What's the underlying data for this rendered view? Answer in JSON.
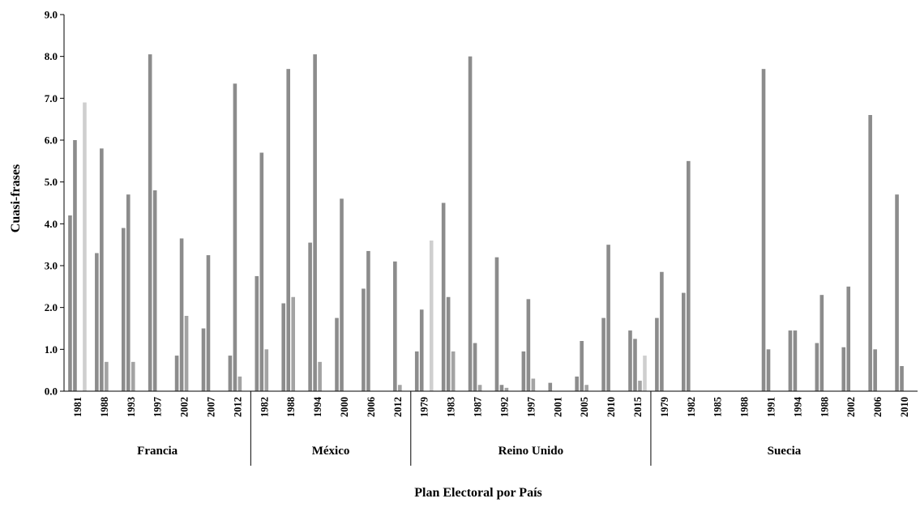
{
  "chart_data": {
    "type": "bar",
    "title": "",
    "xlabel": "Plan Electoral por País",
    "ylabel": "Cuasi-frases",
    "ylim": [
      0,
      9
    ],
    "yticks": [
      "0.0",
      "1.0",
      "2.0",
      "3.0",
      "4.0",
      "5.0",
      "6.0",
      "7.0",
      "8.0",
      "9.0"
    ],
    "grid": false,
    "legend": "none",
    "colors": [
      "#8c8c8c",
      "#8c8c8c",
      "#a3a3a3",
      "#cfcfcf"
    ],
    "groups": [
      {
        "name": "Francia",
        "categories": [
          "1981",
          "1988",
          "1993",
          "1997",
          "2002",
          "2007",
          "2012"
        ]
      },
      {
        "name": "México",
        "categories": [
          "1982",
          "1988",
          "1994",
          "2000",
          "2006",
          "2012"
        ]
      },
      {
        "name": "Reino Unido",
        "categories": [
          "1979",
          "1983",
          "1987",
          "1992",
          "1997",
          "2001",
          "2005",
          "2010",
          "2015"
        ]
      },
      {
        "name": "Suecia",
        "categories": [
          "1979",
          "1982",
          "1985",
          "1988",
          "1991",
          "1994",
          "1988",
          "2002",
          "2006",
          "2010"
        ]
      }
    ],
    "values": [
      [
        4.2,
        6.0,
        0,
        6.9
      ],
      [
        3.3,
        5.8,
        0.7,
        0
      ],
      [
        3.9,
        4.7,
        0.7,
        0
      ],
      [
        8.05,
        4.8,
        0,
        0
      ],
      [
        0.85,
        3.65,
        1.8,
        0
      ],
      [
        1.5,
        3.25,
        0,
        0
      ],
      [
        0.85,
        7.35,
        0.35,
        0
      ],
      [
        2.75,
        5.7,
        1.0,
        0
      ],
      [
        2.1,
        7.7,
        2.25,
        0
      ],
      [
        3.55,
        8.05,
        0.7,
        0
      ],
      [
        1.75,
        4.6,
        0,
        0
      ],
      [
        2.45,
        3.35,
        0,
        0
      ],
      [
        0,
        3.1,
        0.15,
        0
      ],
      [
        0.95,
        1.95,
        0,
        3.6
      ],
      [
        4.5,
        2.25,
        0.95,
        0
      ],
      [
        8.0,
        1.15,
        0.15,
        0
      ],
      [
        3.2,
        0.15,
        0.08,
        0
      ],
      [
        0.95,
        2.2,
        0.3,
        0
      ],
      [
        0.2,
        0,
        0,
        0
      ],
      [
        0.35,
        1.2,
        0.15,
        0
      ],
      [
        1.75,
        3.5,
        0,
        0
      ],
      [
        1.45,
        1.25,
        0.25,
        0.85
      ],
      [
        1.75,
        2.85,
        0,
        0
      ],
      [
        2.35,
        5.5,
        0,
        0
      ],
      [
        0,
        0,
        0,
        0
      ],
      [
        0,
        0,
        0,
        0
      ],
      [
        7.7,
        1.0,
        0,
        0
      ],
      [
        1.45,
        1.45,
        0,
        0
      ],
      [
        1.15,
        2.3,
        0,
        0
      ],
      [
        1.05,
        2.5,
        0,
        0
      ],
      [
        6.6,
        1.0,
        0,
        0
      ],
      [
        4.7,
        0.6,
        0,
        0
      ]
    ]
  }
}
